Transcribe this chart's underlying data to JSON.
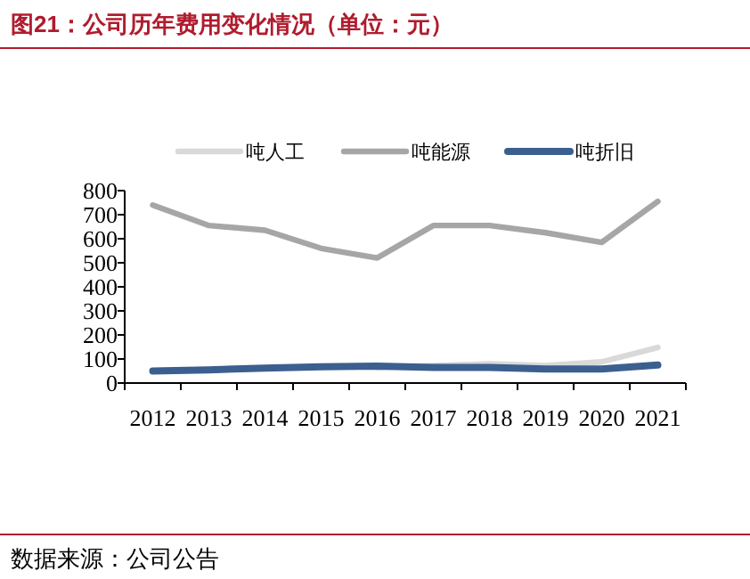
{
  "chart_data": {
    "type": "line",
    "title": "图21：公司历年费用变化情况（单位：元）",
    "categories": [
      "2012",
      "2013",
      "2014",
      "2015",
      "2016",
      "2017",
      "2018",
      "2019",
      "2020",
      "2021"
    ],
    "series": [
      {
        "name": "吨人工",
        "color": "#d9d9d9",
        "values": [
          null,
          null,
          null,
          null,
          65,
          72,
          80,
          72,
          88,
          148
        ]
      },
      {
        "name": "吨能源",
        "color": "#a6a6a6",
        "values": [
          740,
          655,
          635,
          560,
          520,
          655,
          655,
          625,
          585,
          755
        ]
      },
      {
        "name": "吨折旧",
        "color": "#3b5f8f",
        "values": [
          50,
          55,
          62,
          68,
          70,
          65,
          65,
          58,
          58,
          75
        ]
      }
    ],
    "ylim": [
      0,
      800
    ],
    "yticks": [
      0,
      100,
      200,
      300,
      400,
      500,
      600,
      700,
      800
    ],
    "grid": false,
    "legend": "top",
    "marker": "none",
    "line_style": "solid",
    "annotations": [
      "数据来源：公司公告"
    ]
  }
}
